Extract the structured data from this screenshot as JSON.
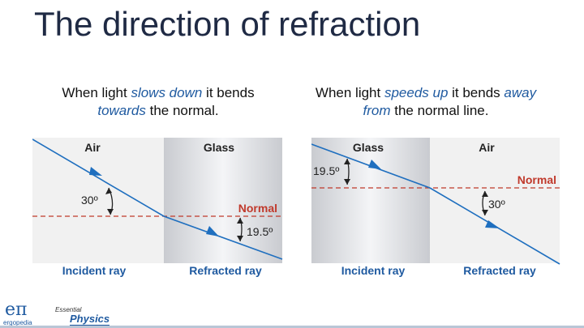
{
  "title": "The direction of refraction",
  "left_caption": {
    "p1": "When light ",
    "h1": "slows down",
    "p2": " it bends ",
    "h2": "towards",
    "p3": " the normal."
  },
  "right_caption": {
    "p1": "When light ",
    "h1": "speeds up",
    "p2": " it bends ",
    "h2": "away from",
    "p3": " the normal line."
  },
  "left_diagram": {
    "medium_left": "Air",
    "medium_right": "Glass",
    "normal_label": "Normal",
    "angle_incident": "30º",
    "angle_refracted": "19.5º",
    "incident_ray": "Incident ray",
    "refracted_ray": "Refracted ray"
  },
  "right_diagram": {
    "medium_left": "Glass",
    "medium_right": "Air",
    "normal_label": "Normal",
    "angle_incident": "19.5º",
    "angle_refracted": "30º",
    "incident_ray": "Incident ray",
    "refracted_ray": "Refracted ray"
  },
  "footer": {
    "logo_symbol": "eπ",
    "logo_name": "ergopedia",
    "brand_small": "Essential",
    "brand_big": "Physics"
  },
  "colors": {
    "ray": "#1f6fbf",
    "label_blue": "#1f5aa0",
    "normal_red": "#c0392b",
    "title": "#1f2a44"
  }
}
